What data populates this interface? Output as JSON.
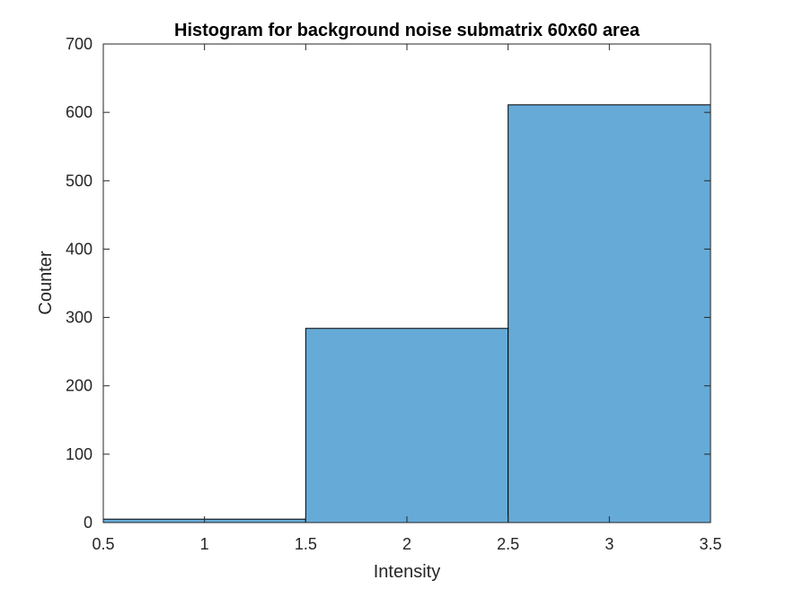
{
  "chart_data": {
    "type": "bar",
    "title": "Histogram for background noise submatrix 60x60 area",
    "xlabel": "Intensity",
    "ylabel": "Counter",
    "xlim": [
      0.5,
      3.5
    ],
    "ylim": [
      0,
      700
    ],
    "x_ticks": [
      {
        "value": 0.5,
        "label": "0.5"
      },
      {
        "value": 1,
        "label": "1"
      },
      {
        "value": 1.5,
        "label": "1.5"
      },
      {
        "value": 2,
        "label": "2"
      },
      {
        "value": 2.5,
        "label": "2.5"
      },
      {
        "value": 3,
        "label": "3"
      },
      {
        "value": 3.5,
        "label": "3.5"
      }
    ],
    "y_ticks": [
      {
        "value": 0,
        "label": "0"
      },
      {
        "value": 100,
        "label": "100"
      },
      {
        "value": 200,
        "label": "200"
      },
      {
        "value": 300,
        "label": "300"
      },
      {
        "value": 400,
        "label": "400"
      },
      {
        "value": 500,
        "label": "500"
      },
      {
        "value": 600,
        "label": "600"
      },
      {
        "value": 700,
        "label": "700"
      }
    ],
    "bins": [
      {
        "x_start": 0.5,
        "x_end": 1.5,
        "count": 5
      },
      {
        "x_start": 1.5,
        "x_end": 2.5,
        "count": 284
      },
      {
        "x_start": 2.5,
        "x_end": 3.5,
        "count": 611
      }
    ],
    "grid": false,
    "colors": {
      "bar_fill": "#66aad7",
      "bar_edge": "#000000",
      "axis": "#262626",
      "background": "#ffffff"
    }
  }
}
